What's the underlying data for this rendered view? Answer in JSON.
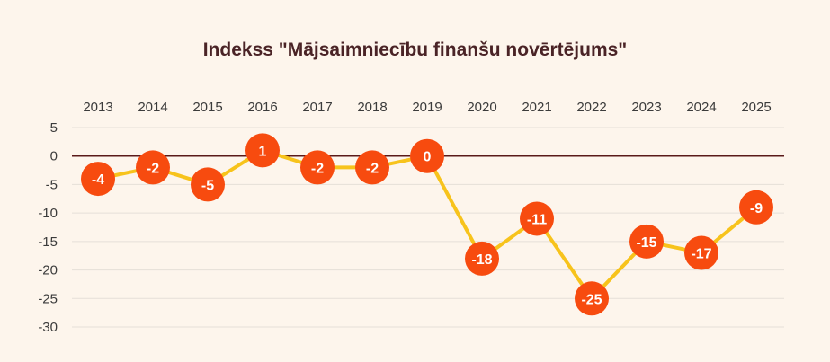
{
  "chart_data": {
    "type": "line",
    "title": "Indekss \"Mājsaimniecību finanšu novērtējums\"",
    "categories": [
      "2013",
      "2014",
      "2015",
      "2016",
      "2017",
      "2018",
      "2019",
      "2020",
      "2021",
      "2022",
      "2023",
      "2024",
      "2025"
    ],
    "values": [
      -4,
      -2,
      -5,
      1,
      -2,
      -2,
      0,
      -18,
      -11,
      -25,
      -15,
      -17,
      -9
    ],
    "data_labels": [
      "-4",
      "-2",
      "-5",
      "1",
      "-2",
      "-2",
      "0",
      "-18",
      "-11",
      "-25",
      "-15",
      "-17",
      "-9"
    ],
    "y_ticks": [
      5,
      0,
      -5,
      -10,
      -15,
      -20,
      -25,
      -30
    ],
    "y_tick_labels": [
      "5",
      "0",
      "-5",
      "-10",
      "-15",
      "-20",
      "-25",
      "-30"
    ],
    "ylim": [
      -30,
      5
    ],
    "x_axis_position": "top",
    "grid": true,
    "legend": "none",
    "colors": {
      "line": "#f7c31c",
      "marker": "#f74b0f",
      "zero_line": "#5a1a1a",
      "grid": "#e5dfd8",
      "background": "#fdf5ec",
      "title": "#4a2326"
    }
  }
}
